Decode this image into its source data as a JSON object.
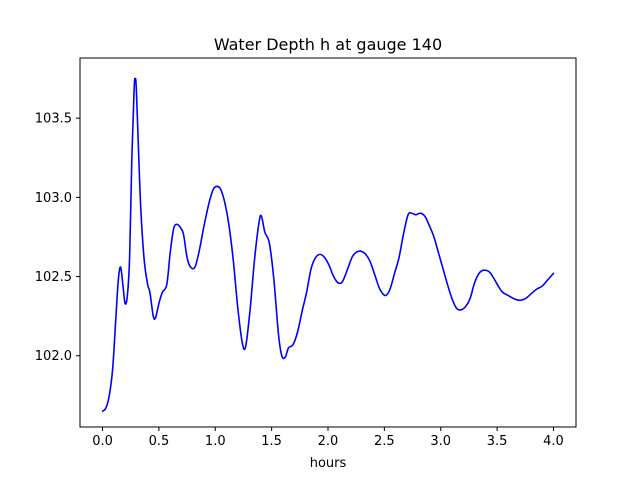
{
  "chart_data": {
    "type": "line",
    "title": "Water Depth h at gauge 140",
    "xlabel": "hours",
    "ylabel": "",
    "xlim": [
      -0.2,
      4.2
    ],
    "ylim": [
      101.55,
      103.88
    ],
    "grid": false,
    "x_ticks": [
      0.0,
      0.5,
      1.0,
      1.5,
      2.0,
      2.5,
      3.0,
      3.5,
      4.0
    ],
    "x_tick_labels": [
      "0.0",
      "0.5",
      "1.0",
      "1.5",
      "2.0",
      "2.5",
      "3.0",
      "3.5",
      "4.0"
    ],
    "y_ticks": [
      102.0,
      102.5,
      103.0,
      103.5
    ],
    "y_tick_labels": [
      "102.0",
      "102.5",
      "103.0",
      "103.5"
    ],
    "series": [
      {
        "color": "#0000ff",
        "points": [
          [
            0.0,
            101.65
          ],
          [
            0.03,
            101.67
          ],
          [
            0.06,
            101.75
          ],
          [
            0.09,
            101.92
          ],
          [
            0.12,
            102.26
          ],
          [
            0.14,
            102.48
          ],
          [
            0.16,
            102.56
          ],
          [
            0.18,
            102.45
          ],
          [
            0.2,
            102.33
          ],
          [
            0.22,
            102.38
          ],
          [
            0.24,
            102.62
          ],
          [
            0.26,
            103.25
          ],
          [
            0.28,
            103.68
          ],
          [
            0.29,
            103.75
          ],
          [
            0.3,
            103.68
          ],
          [
            0.32,
            103.28
          ],
          [
            0.34,
            102.92
          ],
          [
            0.37,
            102.6
          ],
          [
            0.4,
            102.45
          ],
          [
            0.42,
            102.4
          ],
          [
            0.45,
            102.25
          ],
          [
            0.47,
            102.24
          ],
          [
            0.5,
            102.33
          ],
          [
            0.53,
            102.4
          ],
          [
            0.57,
            102.45
          ],
          [
            0.6,
            102.65
          ],
          [
            0.63,
            102.8
          ],
          [
            0.66,
            102.83
          ],
          [
            0.7,
            102.8
          ],
          [
            0.72,
            102.76
          ],
          [
            0.75,
            102.62
          ],
          [
            0.78,
            102.56
          ],
          [
            0.82,
            102.56
          ],
          [
            0.86,
            102.67
          ],
          [
            0.9,
            102.82
          ],
          [
            0.95,
            102.98
          ],
          [
            0.99,
            103.06
          ],
          [
            1.04,
            103.06
          ],
          [
            1.08,
            102.98
          ],
          [
            1.12,
            102.83
          ],
          [
            1.16,
            102.6
          ],
          [
            1.2,
            102.3
          ],
          [
            1.24,
            102.08
          ],
          [
            1.27,
            102.06
          ],
          [
            1.31,
            102.3
          ],
          [
            1.35,
            102.62
          ],
          [
            1.39,
            102.85
          ],
          [
            1.41,
            102.88
          ],
          [
            1.44,
            102.78
          ],
          [
            1.48,
            102.71
          ],
          [
            1.52,
            102.48
          ],
          [
            1.56,
            102.14
          ],
          [
            1.59,
            102.0
          ],
          [
            1.62,
            101.99
          ],
          [
            1.65,
            102.05
          ],
          [
            1.69,
            102.07
          ],
          [
            1.73,
            102.15
          ],
          [
            1.77,
            102.28
          ],
          [
            1.81,
            102.4
          ],
          [
            1.85,
            102.55
          ],
          [
            1.89,
            102.62
          ],
          [
            1.93,
            102.64
          ],
          [
            1.97,
            102.62
          ],
          [
            2.01,
            102.57
          ],
          [
            2.05,
            102.5
          ],
          [
            2.09,
            102.46
          ],
          [
            2.13,
            102.47
          ],
          [
            2.18,
            102.56
          ],
          [
            2.22,
            102.63
          ],
          [
            2.27,
            102.66
          ],
          [
            2.32,
            102.65
          ],
          [
            2.37,
            102.6
          ],
          [
            2.42,
            102.5
          ],
          [
            2.46,
            102.42
          ],
          [
            2.51,
            102.38
          ],
          [
            2.55,
            102.42
          ],
          [
            2.59,
            102.52
          ],
          [
            2.63,
            102.62
          ],
          [
            2.67,
            102.77
          ],
          [
            2.71,
            102.89
          ],
          [
            2.74,
            102.9
          ],
          [
            2.78,
            102.89
          ],
          [
            2.82,
            102.9
          ],
          [
            2.86,
            102.88
          ],
          [
            2.9,
            102.82
          ],
          [
            2.94,
            102.75
          ],
          [
            2.98,
            102.65
          ],
          [
            3.02,
            102.55
          ],
          [
            3.06,
            102.45
          ],
          [
            3.1,
            102.36
          ],
          [
            3.14,
            102.3
          ],
          [
            3.18,
            102.29
          ],
          [
            3.22,
            102.31
          ],
          [
            3.26,
            102.36
          ],
          [
            3.3,
            102.46
          ],
          [
            3.34,
            102.52
          ],
          [
            3.38,
            102.54
          ],
          [
            3.43,
            102.53
          ],
          [
            3.47,
            102.49
          ],
          [
            3.51,
            102.44
          ],
          [
            3.55,
            102.4
          ],
          [
            3.6,
            102.38
          ],
          [
            3.65,
            102.36
          ],
          [
            3.7,
            102.35
          ],
          [
            3.75,
            102.36
          ],
          [
            3.8,
            102.39
          ],
          [
            3.85,
            102.42
          ],
          [
            3.9,
            102.44
          ],
          [
            3.95,
            102.48
          ],
          [
            4.0,
            102.52
          ]
        ]
      }
    ]
  }
}
